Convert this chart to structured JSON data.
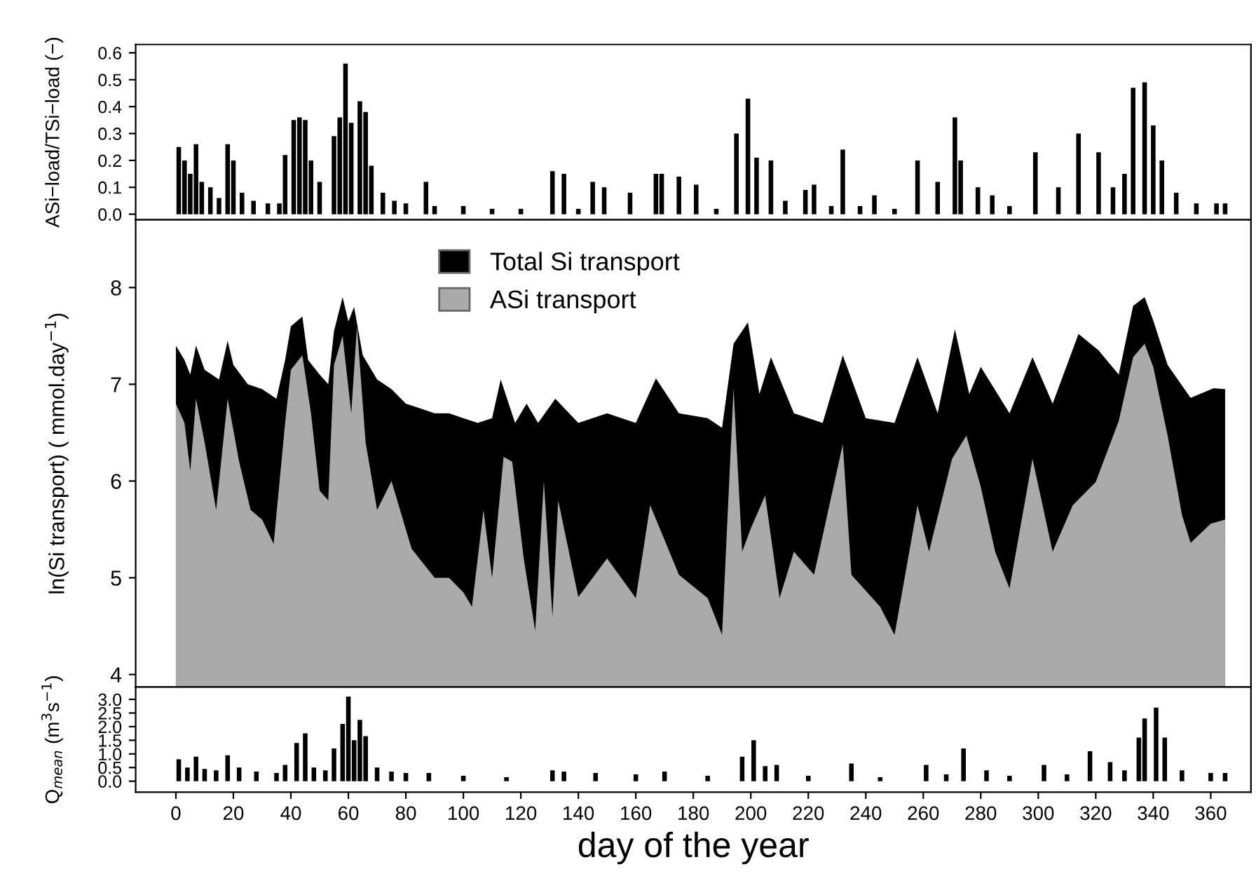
{
  "chart_data": [
    {
      "type": "bar",
      "ylabel": "ASi−load/TSi−load (−)",
      "xlim": [
        -14,
        374
      ],
      "ylim": [
        -0.021,
        0.631
      ],
      "tick_labels": "y",
      "yticks": [
        {
          "value": 0,
          "label": "0.0"
        },
        {
          "value": 0.1,
          "label": "0.1"
        },
        {
          "value": 0.2,
          "label": "0.2"
        },
        {
          "value": 0.3,
          "label": "0.3"
        },
        {
          "value": 0.4,
          "label": "0.4"
        },
        {
          "value": 0.5,
          "label": "0.5"
        },
        {
          "value": 0.6,
          "label": "0.6"
        }
      ],
      "series": [
        {
          "color": "#000000",
          "x": [
            1,
            3,
            5,
            7,
            9,
            12,
            15,
            18,
            20,
            23,
            27,
            32,
            36,
            38,
            41,
            43,
            45,
            47,
            50,
            55,
            57,
            59,
            61,
            64,
            66,
            68,
            72,
            76,
            80,
            87,
            90,
            100,
            110,
            120,
            131,
            135,
            140,
            145,
            149,
            158,
            167,
            169,
            175,
            181,
            188,
            195,
            199,
            202,
            207,
            212,
            219,
            222,
            228,
            232,
            238,
            243,
            250,
            258,
            265,
            271,
            273,
            279,
            284,
            290,
            299,
            307,
            314,
            321,
            326,
            330,
            333,
            337,
            340,
            343,
            348,
            355,
            362,
            365
          ],
          "values": [
            0.25,
            0.2,
            0.15,
            0.26,
            0.12,
            0.1,
            0.06,
            0.26,
            0.2,
            0.08,
            0.05,
            0.04,
            0.04,
            0.22,
            0.35,
            0.36,
            0.35,
            0.2,
            0.12,
            0.29,
            0.36,
            0.56,
            0.34,
            0.42,
            0.38,
            0.18,
            0.08,
            0.05,
            0.04,
            0.12,
            0.03,
            0.03,
            0.02,
            0.02,
            0.16,
            0.15,
            0.02,
            0.12,
            0.1,
            0.08,
            0.15,
            0.15,
            0.14,
            0.11,
            0.02,
            0.3,
            0.43,
            0.21,
            0.2,
            0.05,
            0.09,
            0.11,
            0.03,
            0.24,
            0.03,
            0.07,
            0.02,
            0.2,
            0.12,
            0.36,
            0.2,
            0.1,
            0.07,
            0.03,
            0.23,
            0.1,
            0.3,
            0.23,
            0.1,
            0.15,
            0.47,
            0.49,
            0.33,
            0.2,
            0.08,
            0.04,
            0.04,
            0.04
          ]
        }
      ]
    },
    {
      "type": "area",
      "ylabel": "ln(Si transport) ( mmol.day$^{−1}$)",
      "xlim": [
        -14,
        374
      ],
      "ylim": [
        3.87,
        8.7
      ],
      "yticks": [
        4,
        5,
        6,
        7,
        8
      ],
      "tick_labels": "y",
      "legend": "top",
      "series": [
        {
          "name": "Total Si transport",
          "color": "#000000",
          "x": [
            0,
            3,
            5,
            7,
            10,
            15,
            18,
            20,
            25,
            30,
            35,
            38,
            40,
            44,
            46,
            50,
            53,
            55,
            58,
            60,
            62,
            65,
            70,
            75,
            80,
            85,
            90,
            95,
            100,
            105,
            110,
            113,
            118,
            122,
            126,
            132,
            140,
            150,
            160,
            167,
            175,
            185,
            190,
            194,
            199,
            203,
            207,
            215,
            225,
            232,
            240,
            250,
            258,
            265,
            271,
            276,
            280,
            290,
            298,
            305,
            314,
            321,
            328,
            333,
            337,
            340,
            345,
            353,
            361,
            365
          ],
          "values": [
            7.4,
            7.25,
            7.1,
            7.4,
            7.15,
            7.05,
            7.45,
            7.2,
            7.0,
            6.95,
            6.85,
            7.25,
            7.6,
            7.7,
            7.25,
            7.1,
            7.0,
            7.55,
            7.9,
            7.65,
            7.8,
            7.3,
            7.05,
            6.95,
            6.8,
            6.75,
            6.7,
            6.7,
            6.65,
            6.6,
            6.65,
            7.05,
            6.6,
            6.8,
            6.6,
            6.85,
            6.6,
            6.7,
            6.6,
            7.06,
            6.7,
            6.65,
            6.55,
            7.42,
            7.64,
            6.9,
            7.28,
            6.7,
            6.6,
            7.3,
            6.65,
            6.6,
            7.28,
            6.7,
            7.57,
            6.9,
            7.18,
            6.7,
            7.28,
            6.8,
            7.52,
            7.35,
            7.1,
            7.81,
            7.9,
            7.66,
            7.2,
            6.86,
            6.96,
            6.95
          ]
        },
        {
          "name": "ASi transport",
          "color": "#aaaaaa",
          "x": [
            0,
            3,
            5,
            7,
            10,
            14,
            18,
            22,
            26,
            30,
            34,
            38,
            40,
            44,
            47,
            50,
            53,
            55,
            58,
            61,
            63,
            66,
            70,
            75,
            82,
            90,
            95,
            100,
            103,
            107,
            110,
            114,
            117,
            121,
            125,
            128,
            131,
            133,
            140,
            150,
            160,
            165,
            175,
            185,
            190,
            194,
            197,
            200,
            205,
            210,
            215,
            222,
            232,
            235,
            245,
            250,
            258,
            262,
            270,
            275,
            280,
            285,
            290,
            298,
            305,
            312,
            320,
            328,
            333,
            337,
            340,
            345,
            350,
            353,
            360,
            365
          ],
          "values": [
            6.8,
            6.6,
            6.1,
            6.85,
            6.4,
            5.7,
            6.85,
            6.2,
            5.7,
            5.6,
            5.35,
            6.6,
            7.15,
            7.3,
            6.7,
            5.9,
            5.8,
            7.2,
            7.5,
            6.7,
            7.6,
            6.4,
            5.7,
            6.0,
            5.3,
            5.0,
            5.0,
            4.85,
            4.7,
            5.7,
            5.0,
            6.25,
            6.2,
            5.2,
            4.45,
            6.0,
            4.6,
            5.8,
            4.8,
            5.2,
            4.79,
            5.75,
            5.03,
            4.79,
            4.41,
            6.96,
            5.27,
            5.51,
            5.85,
            4.79,
            5.27,
            5.03,
            6.38,
            5.03,
            4.7,
            4.41,
            5.75,
            5.27,
            6.23,
            6.47,
            5.94,
            5.27,
            4.89,
            6.23,
            5.27,
            5.75,
            5.99,
            6.62,
            7.28,
            7.42,
            7.18,
            6.47,
            5.65,
            5.36,
            5.56,
            5.6
          ]
        }
      ]
    },
    {
      "type": "bar",
      "ylabel": "Q$_{mean}$ (m$^{3}$s$^{−1}$)",
      "xlabel": "day of the year",
      "xlim": [
        -14,
        374
      ],
      "ylim": [
        -0.4,
        3.45
      ],
      "xticks": [
        0,
        20,
        40,
        60,
        80,
        100,
        120,
        140,
        160,
        180,
        200,
        220,
        240,
        260,
        280,
        300,
        320,
        340,
        360
      ],
      "yticks": [
        {
          "value": 0,
          "label": "0.0"
        },
        {
          "value": 0.5,
          "label": "0.5"
        },
        {
          "value": 1,
          "label": "1.0"
        },
        {
          "value": 1.5,
          "label": "1.5"
        },
        {
          "value": 2,
          "label": "2.0"
        },
        {
          "value": 2.5,
          "label": "2.5"
        },
        {
          "value": 3,
          "label": "3.0"
        }
      ],
      "series": [
        {
          "color": "#000000",
          "x": [
            1,
            4,
            7,
            10,
            14,
            18,
            22,
            28,
            35,
            38,
            42,
            45,
            48,
            52,
            55,
            58,
            60,
            62,
            64,
            66,
            70,
            75,
            80,
            88,
            100,
            115,
            131,
            135,
            146,
            160,
            170,
            185,
            197,
            201,
            205,
            209,
            220,
            235,
            245,
            261,
            268,
            274,
            282,
            290,
            302,
            310,
            318,
            325,
            330,
            335,
            337,
            341,
            344,
            350,
            360,
            365
          ],
          "values": [
            0.8,
            0.5,
            0.9,
            0.45,
            0.4,
            0.95,
            0.5,
            0.35,
            0.3,
            0.6,
            1.4,
            1.75,
            0.5,
            0.4,
            1.2,
            2.1,
            3.1,
            1.5,
            2.25,
            1.65,
            0.5,
            0.35,
            0.3,
            0.3,
            0.2,
            0.15,
            0.4,
            0.35,
            0.3,
            0.25,
            0.35,
            0.2,
            0.9,
            1.5,
            0.55,
            0.6,
            0.2,
            0.65,
            0.15,
            0.6,
            0.25,
            1.2,
            0.4,
            0.2,
            0.6,
            0.25,
            1.1,
            0.7,
            0.4,
            1.6,
            2.3,
            2.7,
            1.6,
            0.4,
            0.3,
            0.3
          ]
        }
      ]
    }
  ]
}
